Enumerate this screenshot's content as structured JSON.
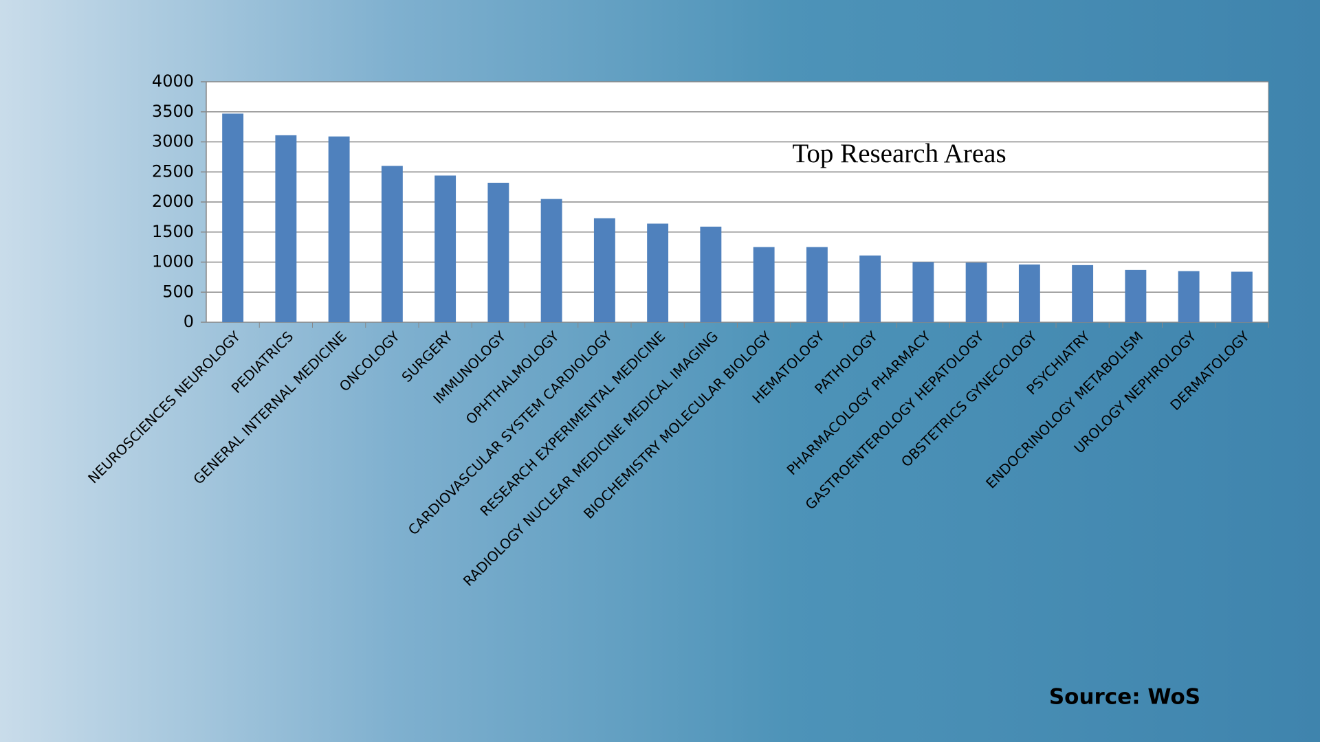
{
  "chart_data": {
    "type": "bar",
    "title": "Top Research Areas",
    "source": "Source: WoS",
    "categories": [
      "NEUROSCIENCES NEUROLOGY",
      "PEDIATRICS",
      "GENERAL INTERNAL MEDICINE",
      "ONCOLOGY",
      "SURGERY",
      "IMMUNOLOGY",
      "OPHTHALMOLOGY",
      "CARDIOVASCULAR SYSTEM CARDIOLOGY",
      "RESEARCH EXPERIMENTAL MEDICINE",
      "RADIOLOGY NUCLEAR MEDICINE MEDICAL IMAGING",
      "BIOCHEMISTRY MOLECULAR BIOLOGY",
      "HEMATOLOGY",
      "PATHOLOGY",
      "PHARMACOLOGY PHARMACY",
      "GASTROENTEROLOGY HEPATOLOGY",
      "OBSTETRICS GYNECOLOGY",
      "PSYCHIATRY",
      "ENDOCRINOLOGY METABOLISM",
      "UROLOGY NEPHROLOGY",
      "DERMATOLOGY"
    ],
    "values": [
      3470,
      3110,
      3090,
      2600,
      2440,
      2320,
      2050,
      1730,
      1640,
      1590,
      1250,
      1250,
      1110,
      1000,
      990,
      960,
      950,
      870,
      850,
      840
    ],
    "color": "#4f81bd",
    "ylim": [
      0,
      4000
    ],
    "yticks": [
      0,
      500,
      1000,
      1500,
      2000,
      2500,
      3000,
      3500,
      4000
    ],
    "grid": true
  }
}
